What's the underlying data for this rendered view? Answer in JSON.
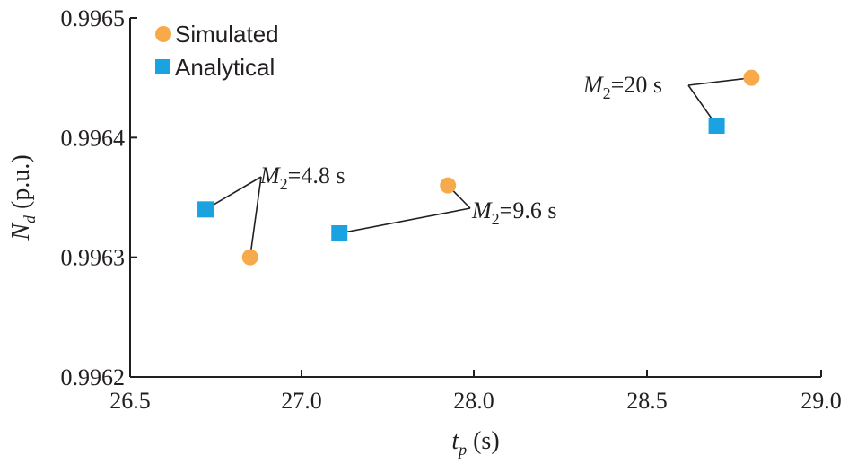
{
  "chart_data": {
    "type": "scatter",
    "xlabel": {
      "var": "t",
      "sub": "p",
      "unit": " (s)"
    },
    "ylabel": {
      "var": "N",
      "sub": "d",
      "unit": " (p.u.)"
    },
    "xlim": [
      26.5,
      29.0
    ],
    "ylim": [
      0.9962,
      0.9965
    ],
    "x_ticks": [
      "26.5",
      "27.0",
      "28.0",
      "28.5",
      "29.0"
    ],
    "y_ticks": [
      "0.9962",
      "0.9963",
      "0.9964",
      "0.9965"
    ],
    "grid": false,
    "legend_position": "top-left",
    "series": [
      {
        "name": "Simulated",
        "marker": "circle",
        "color": "#f7aa4a",
        "points": [
          {
            "x": 26.85,
            "y": 0.9963
          },
          {
            "x": 27.85,
            "y": 0.99636
          },
          {
            "x": 28.8,
            "y": 0.99645
          }
        ]
      },
      {
        "name": "Analytical",
        "marker": "square",
        "color": "#1aa3e0",
        "points": [
          {
            "x": 26.72,
            "y": 0.99634
          },
          {
            "x": 27.22,
            "y": 0.99632
          },
          {
            "x": 28.7,
            "y": 0.99641
          }
        ]
      }
    ],
    "annotations": [
      {
        "var": "M",
        "sub": "2",
        "value": "=4.8 s",
        "points": [
          [
            0,
            0
          ],
          [
            1,
            0
          ]
        ]
      },
      {
        "var": "M",
        "sub": "2",
        "value": "=9.6 s",
        "points": [
          [
            0,
            1
          ],
          [
            1,
            1
          ]
        ]
      },
      {
        "var": "M",
        "sub": "2",
        "value": "=20 s",
        "points": [
          [
            0,
            2
          ],
          [
            1,
            2
          ]
        ]
      }
    ]
  }
}
